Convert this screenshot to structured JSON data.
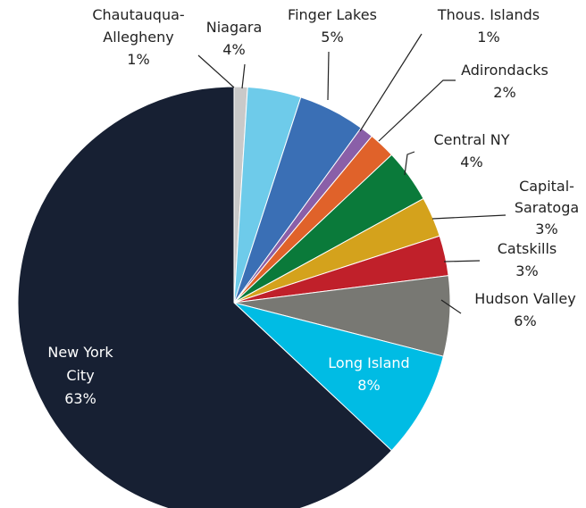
{
  "chart_data": {
    "type": "pie",
    "categories": [
      "Chautauqua-Allegheny",
      "Niagara",
      "Finger Lakes",
      "Thous. Islands",
      "Adirondacks",
      "Central NY",
      "Capital-Saratoga",
      "Catskills",
      "Hudson Valley",
      "Long Island",
      "New York City"
    ],
    "values": [
      1,
      4,
      5,
      1,
      2,
      4,
      3,
      3,
      6,
      8,
      63
    ],
    "value_labels": [
      "1%",
      "4%",
      "5%",
      "1%",
      "2%",
      "4%",
      "3%",
      "3%",
      "6%",
      "8%",
      "63%"
    ],
    "colors": [
      "#c9c9c9",
      "#6ecbea",
      "#3a6fb5",
      "#8a5fa8",
      "#e0622a",
      "#0a7a3a",
      "#d4a21c",
      "#c0202a",
      "#787873",
      "#00bce4",
      "#172033"
    ]
  }
}
